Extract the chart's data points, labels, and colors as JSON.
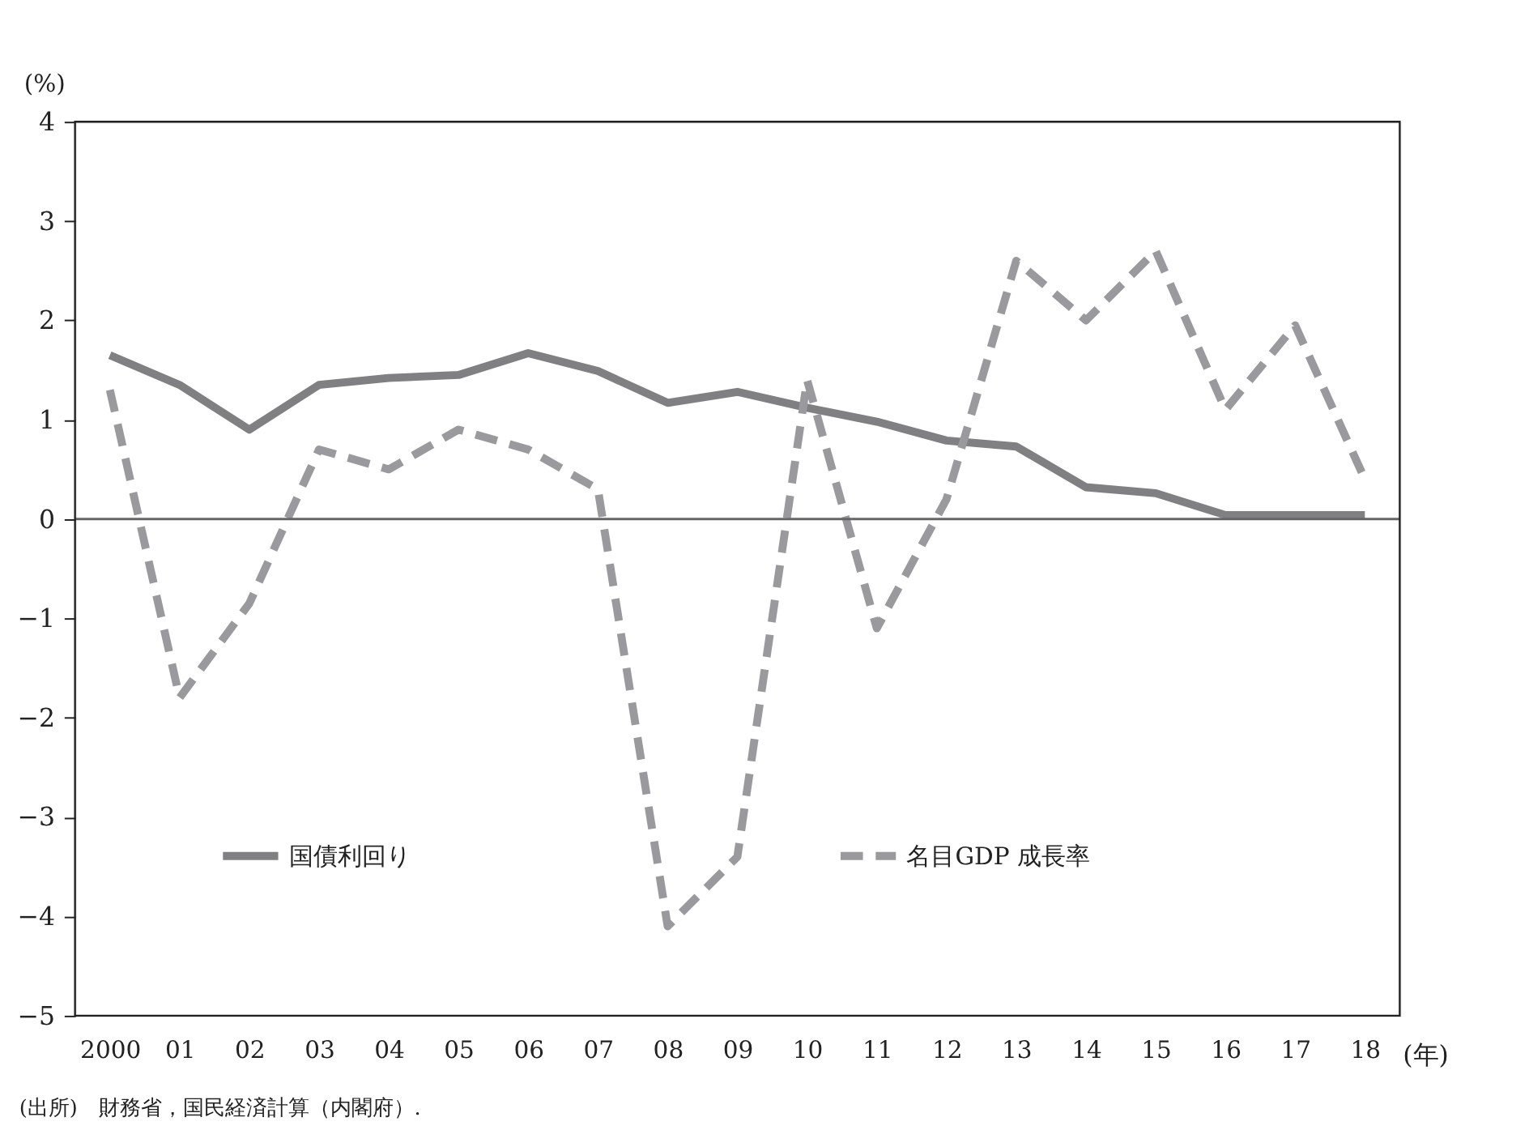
{
  "chart_data": {
    "type": "line",
    "categories": [
      "2000",
      "01",
      "02",
      "03",
      "04",
      "05",
      "06",
      "07",
      "08",
      "09",
      "10",
      "11",
      "12",
      "13",
      "14",
      "15",
      "16",
      "17",
      "18"
    ],
    "series": [
      {
        "name": "国債利回り",
        "color": "#808083",
        "line_style": "solid",
        "values": [
          1.65,
          1.35,
          0.9,
          1.35,
          1.42,
          1.45,
          1.67,
          1.49,
          1.17,
          1.28,
          1.12,
          0.98,
          0.79,
          0.73,
          0.32,
          0.26,
          0.04,
          0.04,
          0.04
        ]
      },
      {
        "name": "名目GDP 成長率",
        "color": "#9a9a9e",
        "line_style": "dashed",
        "values": [
          1.3,
          -1.8,
          -0.85,
          0.7,
          0.5,
          0.9,
          0.7,
          0.3,
          -4.1,
          -3.4,
          1.4,
          -1.1,
          0.2,
          2.6,
          2.0,
          2.7,
          1.1,
          1.95,
          0.4
        ]
      }
    ],
    "ylabel": "(%)",
    "xlabel": "(年)",
    "ylim": [
      -5,
      4
    ],
    "yticks": [
      -5,
      -4,
      -3,
      -2,
      -1,
      0,
      1,
      2,
      3,
      4
    ],
    "ref_lines": [
      {
        "axis": "y",
        "value": 0,
        "color": "#666666"
      }
    ],
    "grid": false,
    "legend": "bottom",
    "marker": "none",
    "annotations": [
      "(出所)　財務省，国民経済計算（内閣府）."
    ]
  }
}
